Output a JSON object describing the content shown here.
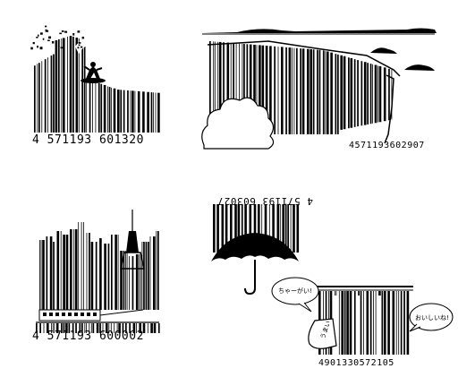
{
  "colors": {
    "ink": "#000000",
    "paper": "#ffffff"
  },
  "barcodes": [
    {
      "name": "wave-surfer-barcode",
      "number": "4 571193 601320"
    },
    {
      "name": "waterfall-barcode",
      "number": "4571193602907"
    },
    {
      "name": "city-skyline-barcode",
      "number": "4 571193 600002"
    },
    {
      "name": "umbrella-rain-barcode",
      "number": "4 571193 603027"
    },
    {
      "name": "noren-curtain-barcode",
      "number": "4901330572105"
    }
  ],
  "speech_bubbles": {
    "left": "ちゃーがい!",
    "right": "おいしいね!"
  },
  "curtain_sign": "うまい"
}
